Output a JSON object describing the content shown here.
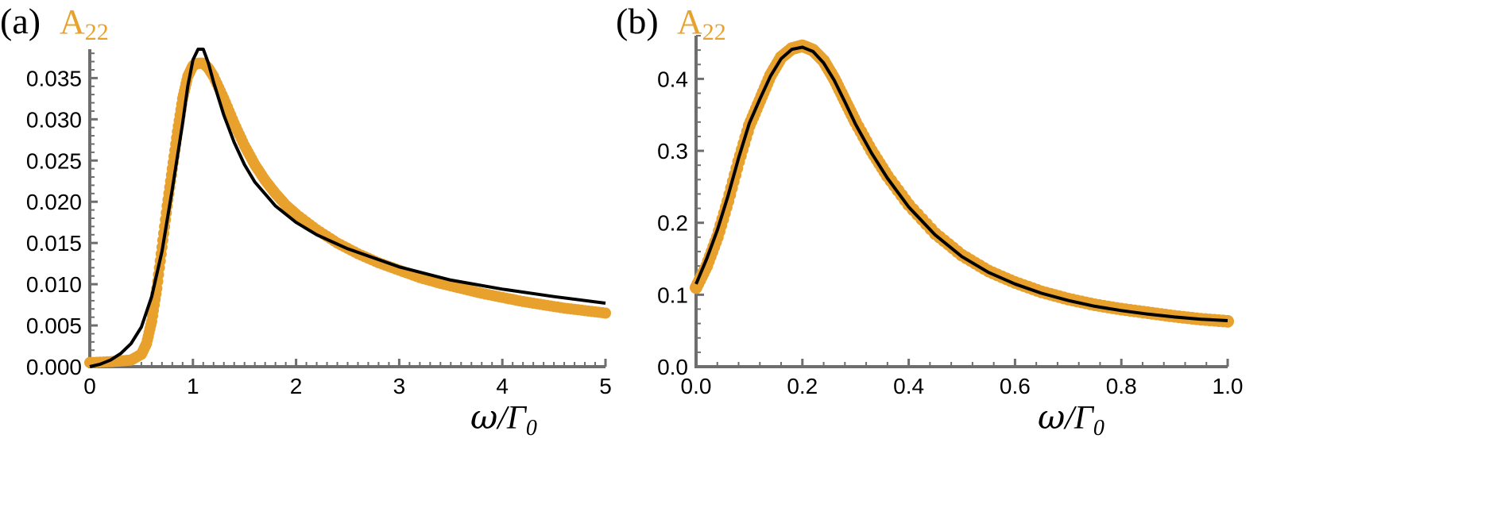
{
  "chart_data": [
    {
      "type": "line",
      "panel_label": "(a)",
      "ylabel": {
        "main": "A",
        "sub": "22"
      },
      "xlabel": {
        "omega": "ω",
        "slash": "/",
        "gamma": "Γ",
        "sub": "0"
      },
      "xlim": [
        0,
        5
      ],
      "ylim": [
        0,
        0.0385
      ],
      "x_ticks": [
        "0",
        "1",
        "2",
        "3",
        "4",
        "5"
      ],
      "y_ticks": [
        "0.000",
        "0.005",
        "0.010",
        "0.015",
        "0.020",
        "0.025",
        "0.030",
        "0.035"
      ],
      "colors": {
        "dots": "#E8A12C",
        "line": "#000000",
        "axes": "#6e6e6e"
      },
      "series": [
        {
          "style": "dots",
          "x": [
            0.0,
            0.2,
            0.3,
            0.4,
            0.5,
            0.55,
            0.6,
            0.65,
            0.7,
            0.75,
            0.8,
            0.85,
            0.9,
            0.95,
            1.0,
            1.05,
            1.1,
            1.15,
            1.2,
            1.3,
            1.4,
            1.5,
            1.6,
            1.7,
            1.8,
            1.9,
            2.0,
            2.2,
            2.4,
            2.6,
            2.8,
            3.0,
            3.2,
            3.4,
            3.6,
            3.8,
            4.0,
            4.2,
            4.4,
            4.6,
            4.8,
            5.0
          ],
          "y": [
            0.0005,
            0.0006,
            0.0007,
            0.0008,
            0.0015,
            0.0028,
            0.0055,
            0.0095,
            0.0145,
            0.0195,
            0.024,
            0.0285,
            0.0325,
            0.0352,
            0.0365,
            0.0368,
            0.0368,
            0.0362,
            0.0352,
            0.0325,
            0.0295,
            0.0268,
            0.0245,
            0.0226,
            0.021,
            0.0196,
            0.0185,
            0.0166,
            0.015,
            0.0137,
            0.0126,
            0.0117,
            0.0108,
            0.0101,
            0.0095,
            0.0089,
            0.0084,
            0.0079,
            0.0075,
            0.0071,
            0.0068,
            0.0065
          ]
        },
        {
          "style": "line",
          "x": [
            0.0,
            0.1,
            0.2,
            0.3,
            0.4,
            0.5,
            0.6,
            0.7,
            0.8,
            0.9,
            0.95,
            1.0,
            1.05,
            1.1,
            1.15,
            1.2,
            1.3,
            1.4,
            1.5,
            1.6,
            1.8,
            2.0,
            2.2,
            2.5,
            3.0,
            3.5,
            4.0,
            4.5,
            5.0
          ],
          "y": [
            0.0,
            0.0003,
            0.0008,
            0.0016,
            0.0028,
            0.0048,
            0.0085,
            0.014,
            0.0215,
            0.0295,
            0.034,
            0.0372,
            0.0385,
            0.0385,
            0.0368,
            0.0345,
            0.0305,
            0.0272,
            0.0245,
            0.0224,
            0.0195,
            0.0175,
            0.016,
            0.0143,
            0.0121,
            0.0105,
            0.0094,
            0.0085,
            0.0077
          ]
        }
      ]
    },
    {
      "type": "line",
      "panel_label": "(b)",
      "ylabel": {
        "main": "A",
        "sub": "22"
      },
      "xlabel": {
        "omega": "ω",
        "slash": "/",
        "gamma": "Γ",
        "sub": "0"
      },
      "xlim": [
        0,
        1.0
      ],
      "ylim": [
        0,
        0.46
      ],
      "x_ticks": [
        "0.0",
        "0.2",
        "0.4",
        "0.6",
        "0.8",
        "1.0"
      ],
      "y_ticks": [
        "0.0",
        "0.1",
        "0.2",
        "0.3",
        "0.4"
      ],
      "colors": {
        "dots": "#E8A12C",
        "line": "#000000",
        "axes": "#6e6e6e"
      },
      "series": [
        {
          "style": "dots",
          "x": [
            0.0,
            0.02,
            0.04,
            0.06,
            0.08,
            0.1,
            0.12,
            0.14,
            0.16,
            0.18,
            0.2,
            0.22,
            0.24,
            0.26,
            0.28,
            0.3,
            0.33,
            0.36,
            0.4,
            0.45,
            0.5,
            0.55,
            0.6,
            0.65,
            0.7,
            0.75,
            0.8,
            0.85,
            0.9,
            0.95,
            1.0
          ],
          "y": [
            0.11,
            0.14,
            0.18,
            0.23,
            0.285,
            0.335,
            0.37,
            0.405,
            0.43,
            0.442,
            0.446,
            0.44,
            0.425,
            0.4,
            0.37,
            0.34,
            0.3,
            0.265,
            0.225,
            0.185,
            0.155,
            0.133,
            0.117,
            0.104,
            0.094,
            0.086,
            0.08,
            0.075,
            0.07,
            0.066,
            0.063
          ]
        },
        {
          "style": "line",
          "x": [
            0.0,
            0.02,
            0.04,
            0.06,
            0.08,
            0.1,
            0.12,
            0.14,
            0.16,
            0.18,
            0.2,
            0.22,
            0.24,
            0.26,
            0.28,
            0.3,
            0.33,
            0.36,
            0.4,
            0.45,
            0.5,
            0.55,
            0.6,
            0.65,
            0.7,
            0.75,
            0.8,
            0.85,
            0.9,
            0.95,
            1.0
          ],
          "y": [
            0.115,
            0.15,
            0.19,
            0.237,
            0.29,
            0.338,
            0.372,
            0.404,
            0.428,
            0.441,
            0.444,
            0.438,
            0.422,
            0.398,
            0.368,
            0.337,
            0.297,
            0.262,
            0.222,
            0.183,
            0.153,
            0.131,
            0.115,
            0.102,
            0.092,
            0.084,
            0.078,
            0.073,
            0.069,
            0.066,
            0.064
          ]
        }
      ]
    }
  ]
}
